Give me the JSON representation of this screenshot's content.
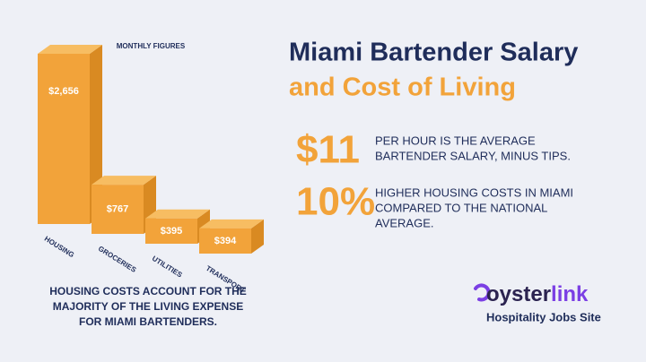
{
  "chart_data": {
    "type": "bar",
    "title": "MONTHLY FIGURES",
    "categories": [
      "HOUSING",
      "GROCERIES",
      "UTILITIES",
      "TRANSPORT"
    ],
    "values": [
      2656,
      767,
      395,
      394
    ],
    "value_labels": [
      "$2,656",
      "$767",
      "$395",
      "$394"
    ],
    "color": "#f2a33a"
  },
  "header": {
    "title": [
      "Miami Bartender Salary",
      "and Cost of Living"
    ]
  },
  "stats": [
    {
      "figure": "$11",
      "text": [
        "PER HOUR IS THE AVERAGE",
        "BARTENDER SALARY, MINUS TIPS."
      ]
    },
    {
      "figure": "10%",
      "text": [
        "HIGHER HOUSING COSTS IN MIAMI",
        "COMPARED TO THE NATIONAL",
        "AVERAGE."
      ]
    }
  ],
  "footer": {
    "text": [
      "HOUSING COSTS ACCOUNT FOR THE",
      "MAJORITY OF THE LIVING EXPENSE",
      "FOR MIAMI BARTENDERS."
    ]
  },
  "brand": {
    "wordmark": [
      "oyster",
      "link"
    ],
    "tagline": "Hospitality Jobs Site"
  }
}
